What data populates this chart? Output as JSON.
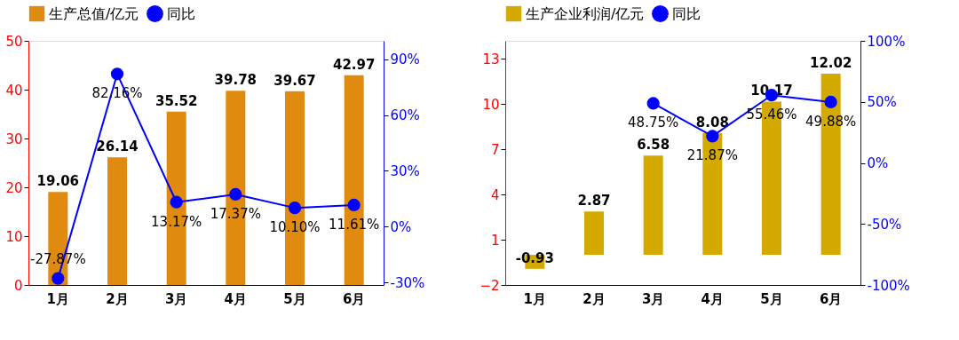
{
  "chart_data": [
    {
      "type": "bar",
      "categories": [
        "1月",
        "2月",
        "3月",
        "4月",
        "5月",
        "6月"
      ],
      "series": [
        {
          "name": "生产总值/亿元",
          "color": "#e08a10",
          "values": [
            19.06,
            26.14,
            35.52,
            39.78,
            39.67,
            42.97
          ]
        },
        {
          "name": "同比",
          "type": "line",
          "axis": "y2",
          "color": "#0000ff",
          "values": [
            -27.87,
            82.16,
            13.17,
            17.37,
            10.1,
            11.61
          ],
          "value_labels": [
            "-27.87%",
            "82.16%",
            "13.17%",
            "17.37%",
            "10.10%",
            "11.61%"
          ]
        }
      ],
      "ylim": [
        0,
        50
      ],
      "yticks": [
        0,
        10,
        20,
        30,
        40,
        50
      ],
      "y2lim": [
        -31.4,
        100
      ],
      "y2ticks": [
        {
          "value": -30,
          "label": "-30%"
        },
        {
          "value": 0,
          "label": "0%"
        },
        {
          "value": 30,
          "label": "30%"
        },
        {
          "value": 60,
          "label": "60%"
        },
        {
          "value": 90,
          "label": "90%"
        }
      ],
      "data_labels": true,
      "marker": "circle",
      "legend": "top",
      "grid": false
    },
    {
      "type": "bar",
      "categories": [
        "1月",
        "2月",
        "3月",
        "4月",
        "5月",
        "6月"
      ],
      "series": [
        {
          "name": "生产企业利润/亿元",
          "color": "#d4aa00",
          "values": [
            -0.93,
            2.87,
            6.58,
            8.08,
            10.17,
            12.02
          ]
        },
        {
          "name": "同比",
          "type": "line",
          "axis": "y2",
          "color": "#0000ff",
          "values": [
            null,
            null,
            48.75,
            21.87,
            55.46,
            49.88
          ],
          "value_labels": [
            null,
            null,
            "48.75%",
            "21.87%",
            "55.46%",
            "49.88%"
          ]
        }
      ],
      "ylim": [
        -2,
        14.2
      ],
      "yticks": [
        -2,
        1,
        4,
        7,
        10,
        13
      ],
      "y2lim": [
        -100,
        100
      ],
      "y2ticks": [
        {
          "value": -100,
          "label": "-100%"
        },
        {
          "value": -50,
          "label": "-50%"
        },
        {
          "value": 0,
          "label": "0%"
        },
        {
          "value": 50,
          "label": "50%"
        },
        {
          "value": 100,
          "label": "100%"
        }
      ],
      "data_labels": true,
      "marker": "circle",
      "legend": "top",
      "grid": false
    }
  ]
}
